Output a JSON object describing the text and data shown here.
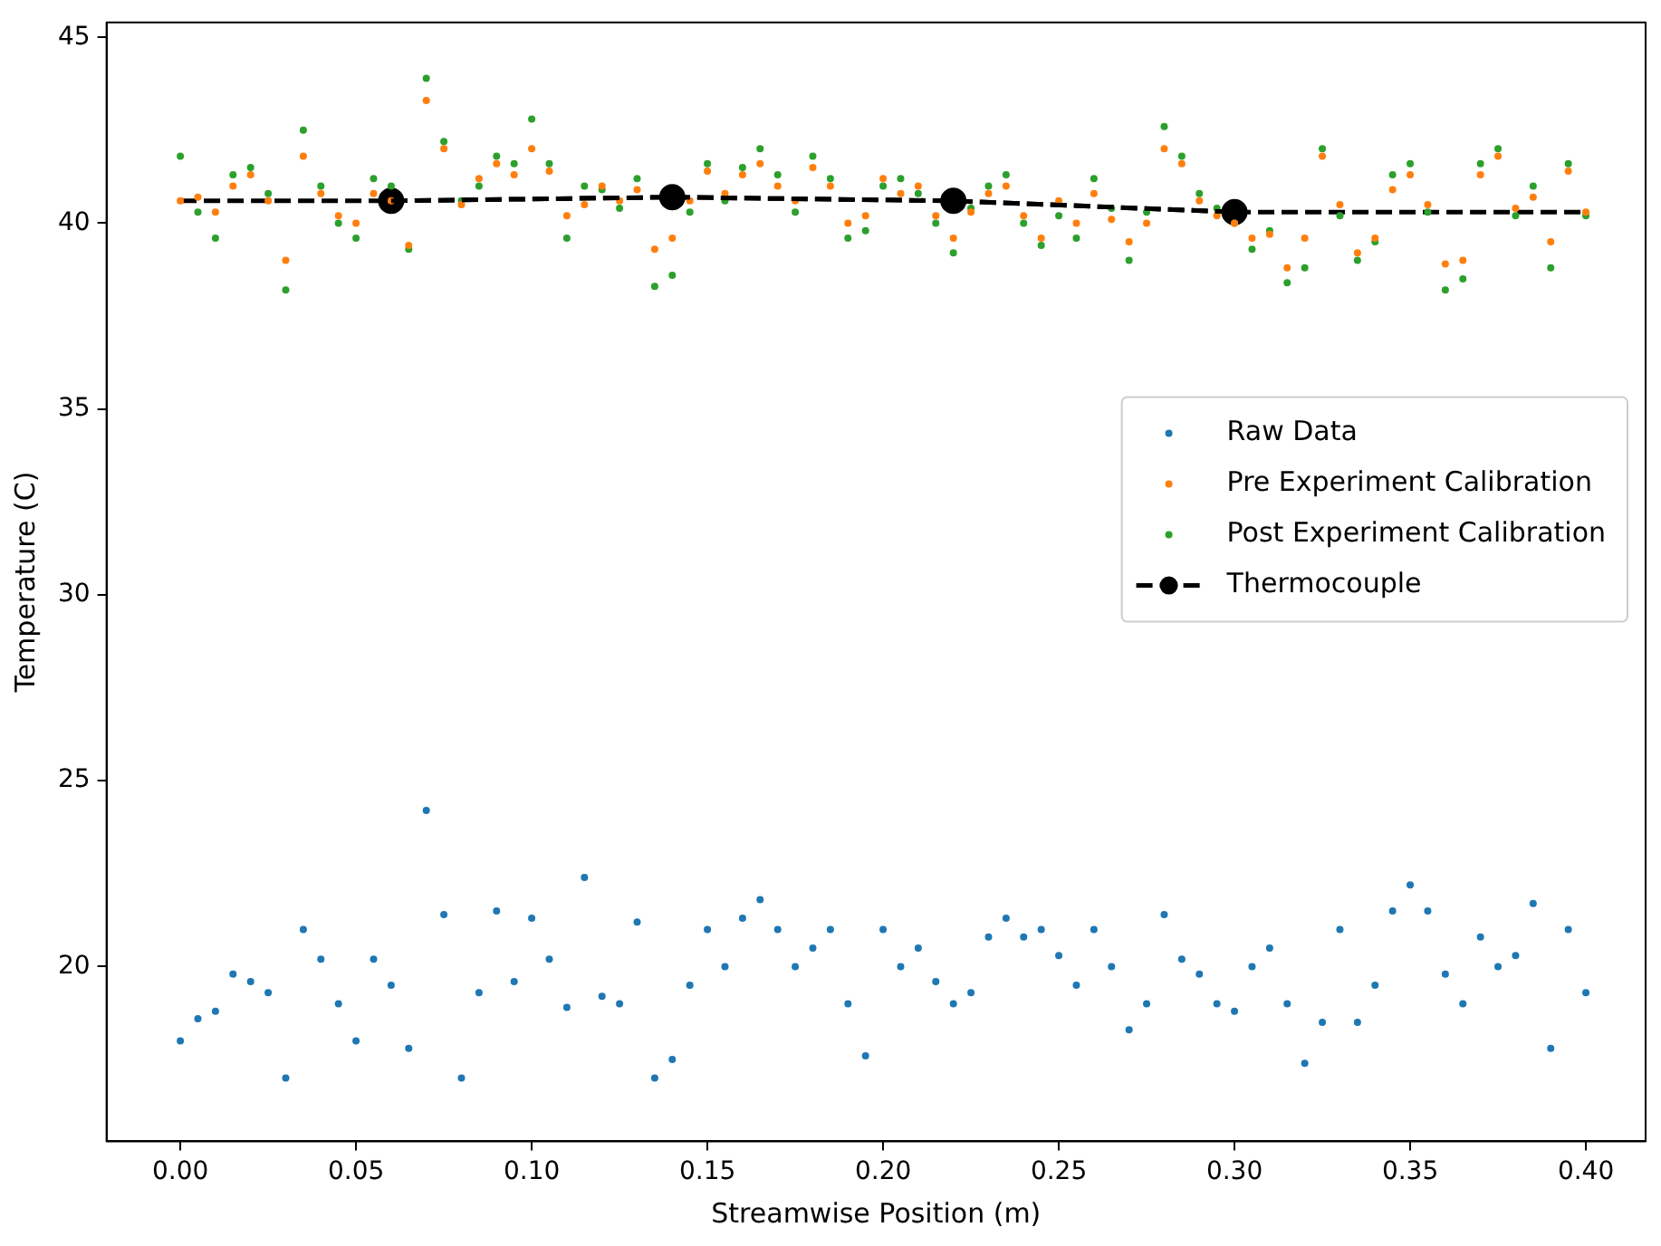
{
  "chart_data": {
    "type": "scatter",
    "xlabel": "Streamwise Position (m)",
    "ylabel": "Temperature (C)",
    "x": [
      0,
      0.005,
      0.01,
      0.015,
      0.02,
      0.025,
      0.03,
      0.035,
      0.04,
      0.045,
      0.05,
      0.055,
      0.06,
      0.065,
      0.07,
      0.075,
      0.08,
      0.085,
      0.09,
      0.095,
      0.1,
      0.105,
      0.11,
      0.115,
      0.12,
      0.125,
      0.13,
      0.135,
      0.14,
      0.145,
      0.15,
      0.155,
      0.16,
      0.165,
      0.17,
      0.175,
      0.18,
      0.185,
      0.19,
      0.195,
      0.2,
      0.205,
      0.21,
      0.215,
      0.22,
      0.225,
      0.23,
      0.235,
      0.24,
      0.245,
      0.25,
      0.255,
      0.26,
      0.265,
      0.27,
      0.275,
      0.28,
      0.285,
      0.29,
      0.295,
      0.3,
      0.305,
      0.31,
      0.315,
      0.32,
      0.325,
      0.33,
      0.335,
      0.34,
      0.345,
      0.35,
      0.355,
      0.36,
      0.365,
      0.37,
      0.375,
      0.38,
      0.385,
      0.39,
      0.395,
      0.4
    ],
    "series": [
      {
        "name": "Raw Data",
        "color": "#1f77b4",
        "marker": "circle",
        "values": [
          18.0,
          18.6,
          18.8,
          19.8,
          19.6,
          19.3,
          17.0,
          21.0,
          20.2,
          19.0,
          18.0,
          20.2,
          19.5,
          17.8,
          24.2,
          21.4,
          17.0,
          19.3,
          21.5,
          19.6,
          21.3,
          20.2,
          18.9,
          22.4,
          19.2,
          19.0,
          21.2,
          17.0,
          17.5,
          19.5,
          21.0,
          20.0,
          21.3,
          21.8,
          21.0,
          20.0,
          20.5,
          21.0,
          19.0,
          17.6,
          21.0,
          20.0,
          20.5,
          19.6,
          19.0,
          19.3,
          20.8,
          21.3,
          20.8,
          21.0,
          20.3,
          19.5,
          21.0,
          20.0,
          18.3,
          19.0,
          21.4,
          20.2,
          19.8,
          19.0,
          18.8,
          20.0,
          20.5,
          19.0,
          17.4,
          18.5,
          21.0,
          18.5,
          19.5,
          21.5,
          22.2,
          21.5,
          19.8,
          19.0,
          20.8,
          20.0,
          20.3,
          21.7,
          17.8,
          21.0,
          19.3
        ]
      },
      {
        "name": "Pre Experiment Calibration",
        "color": "#ff7f0e",
        "marker": "circle",
        "values": [
          40.6,
          40.7,
          40.3,
          41.0,
          41.3,
          40.6,
          39.0,
          41.8,
          40.8,
          40.2,
          40.0,
          40.8,
          40.6,
          39.4,
          43.3,
          42.0,
          40.5,
          41.2,
          41.6,
          41.3,
          42.0,
          41.4,
          40.2,
          40.5,
          41.0,
          40.6,
          40.9,
          39.3,
          39.6,
          40.6,
          41.4,
          40.8,
          41.3,
          41.6,
          41.0,
          40.6,
          41.5,
          41.0,
          40.0,
          40.2,
          41.2,
          40.8,
          41.0,
          40.2,
          39.6,
          40.3,
          40.8,
          41.0,
          40.2,
          39.6,
          40.6,
          40.0,
          40.8,
          40.1,
          39.5,
          40.0,
          42.0,
          41.6,
          40.6,
          40.2,
          40.0,
          39.6,
          39.7,
          38.8,
          39.6,
          41.8,
          40.5,
          39.2,
          39.6,
          40.9,
          41.3,
          40.5,
          38.9,
          39.0,
          41.3,
          41.8,
          40.4,
          40.7,
          39.5,
          41.4,
          40.3
        ]
      },
      {
        "name": "Post Experiment Calibration",
        "color": "#2ca02c",
        "marker": "circle",
        "values": [
          41.8,
          40.3,
          39.6,
          41.3,
          41.5,
          40.8,
          38.2,
          42.5,
          41.0,
          40.0,
          39.6,
          41.2,
          41.0,
          39.3,
          43.9,
          42.2,
          40.6,
          41.0,
          41.8,
          41.6,
          42.8,
          41.6,
          39.6,
          41.0,
          40.9,
          40.4,
          41.2,
          38.3,
          38.6,
          40.3,
          41.6,
          40.6,
          41.5,
          42.0,
          41.3,
          40.3,
          41.8,
          41.2,
          39.6,
          39.8,
          41.0,
          41.2,
          40.8,
          40.0,
          39.2,
          40.4,
          41.0,
          41.3,
          40.0,
          39.4,
          40.2,
          39.6,
          41.2,
          40.4,
          39.0,
          40.3,
          42.6,
          41.8,
          40.8,
          40.4,
          40.0,
          39.3,
          39.8,
          38.4,
          38.8,
          42.0,
          40.2,
          39.0,
          39.5,
          41.3,
          41.6,
          40.3,
          38.2,
          38.5,
          41.6,
          42.0,
          40.2,
          41.0,
          38.8,
          41.6,
          40.2
        ]
      },
      {
        "name": "Thermocouple",
        "type": "line",
        "color": "#000000",
        "marker": "circle",
        "line_style": "dashed",
        "x": [
          0.06,
          0.14,
          0.22,
          0.3
        ],
        "values": [
          40.6,
          40.7,
          40.6,
          40.3
        ]
      },
      {
        "type": "line",
        "color": "#000000",
        "marker": "none",
        "line_style": "dashed",
        "x": [
          0,
          0.06,
          0.2,
          0.3,
          0.4
        ],
        "values": [
          40.6,
          40.6,
          null,
          40.3,
          40.3
        ]
      }
    ],
    "xlim": [
      -0.021,
      0.417
    ],
    "ylim": [
      15.3,
      45.4
    ],
    "xticks": [
      {
        "value": 0,
        "label": "0.00"
      },
      {
        "value": 0.05,
        "label": "0.05"
      },
      {
        "value": 0.1,
        "label": "0.10"
      },
      {
        "value": 0.15,
        "label": "0.15"
      },
      {
        "value": 0.2,
        "label": "0.20"
      },
      {
        "value": 0.25,
        "label": "0.25"
      },
      {
        "value": 0.3,
        "label": "0.30"
      },
      {
        "value": 0.35,
        "label": "0.35"
      },
      {
        "value": 0.4,
        "label": "0.40"
      }
    ],
    "yticks": [
      20,
      25,
      30,
      35,
      40,
      45
    ],
    "grid": false,
    "legend": "right"
  }
}
